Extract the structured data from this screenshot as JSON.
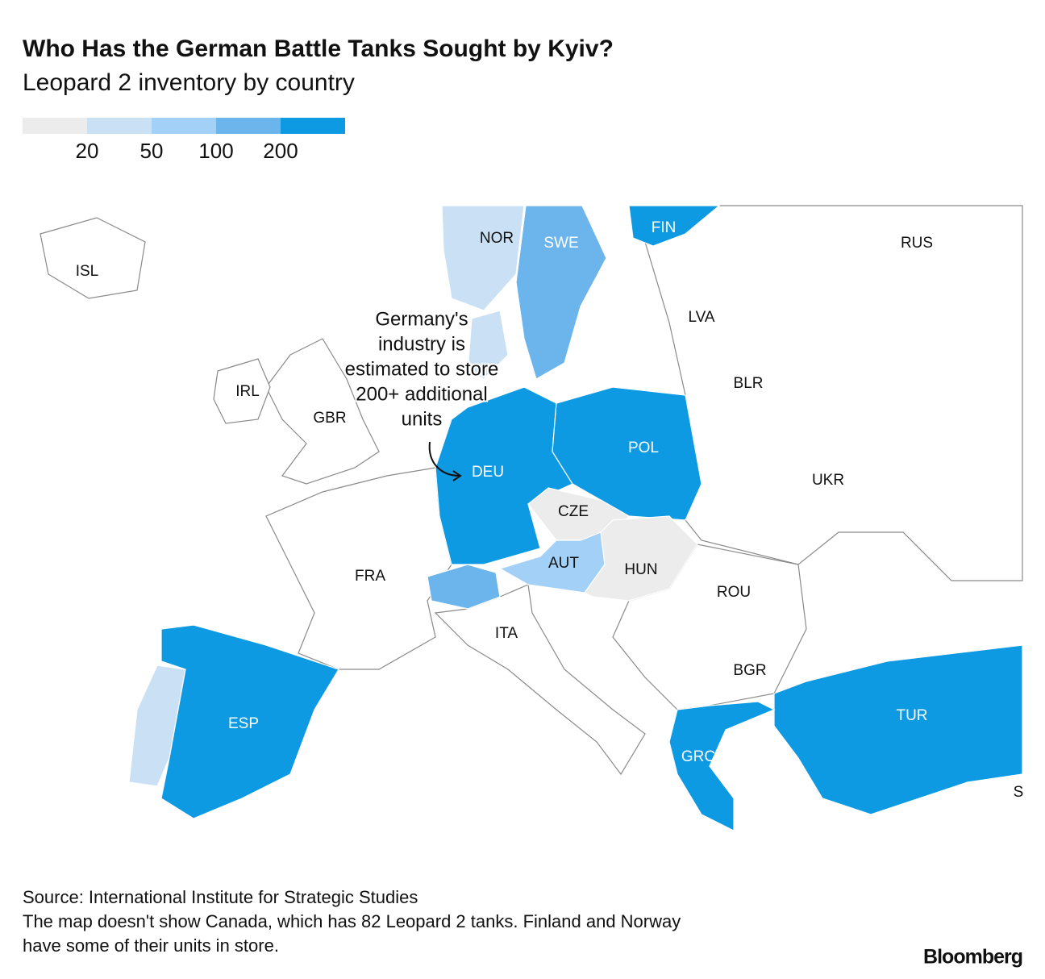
{
  "header": {
    "title": "Who Has the German Battle Tanks Sought by Kyiv?",
    "subtitle": "Leopard 2 inventory by country"
  },
  "legend": {
    "colors": [
      "#ececec",
      "#c9e0f5",
      "#a2d0f7",
      "#6cb5ec",
      "#0d9ae3"
    ],
    "ticks": [
      20,
      50,
      100,
      200
    ]
  },
  "map": {
    "countries": [
      {
        "label": "ISL",
        "color": "#ffffff"
      },
      {
        "label": "NOR",
        "color": "#c9e0f5"
      },
      {
        "label": "SWE",
        "color": "#6cb5ec"
      },
      {
        "label": "FIN",
        "color": "#0d9ae3"
      },
      {
        "label": "RUS",
        "color": "#ffffff"
      },
      {
        "label": "LVA",
        "color": "#ffffff"
      },
      {
        "label": "IRL",
        "color": "#ffffff"
      },
      {
        "label": "GBR",
        "color": "#ffffff"
      },
      {
        "label": "BLR",
        "color": "#ffffff"
      },
      {
        "label": "DEU",
        "color": "#0d9ae3"
      },
      {
        "label": "POL",
        "color": "#0d9ae3"
      },
      {
        "label": "UKR",
        "color": "#ffffff"
      },
      {
        "label": "CZE",
        "color": "#ececec"
      },
      {
        "label": "AUT",
        "color": "#a2d0f7"
      },
      {
        "label": "HUN",
        "color": "#ececec"
      },
      {
        "label": "FRA",
        "color": "#ffffff"
      },
      {
        "label": "ROU",
        "color": "#ffffff"
      },
      {
        "label": "ITA",
        "color": "#ffffff"
      },
      {
        "label": "BGR",
        "color": "#ffffff"
      },
      {
        "label": "ESP",
        "color": "#0d9ae3"
      },
      {
        "label": "TUR",
        "color": "#0d9ae3"
      },
      {
        "label": "GRC",
        "color": "#0d9ae3"
      },
      {
        "label": "S",
        "color": "#ffffff"
      }
    ],
    "unlabeled_fills": [
      "#6cb5ec",
      "#c9e0f5",
      "#c9e0f5"
    ]
  },
  "annotation": {
    "lines": [
      "Germany's",
      "industry is",
      "estimated to store",
      "200+ additional",
      "units"
    ]
  },
  "footer": {
    "source": "Source: International Institute for Strategic Studies",
    "note_lines": [
      "The map doesn't show Canada, which has 82 Leopard 2 tanks. Finland and Norway",
      "have some of their units in store."
    ],
    "logo": "Bloomberg"
  }
}
